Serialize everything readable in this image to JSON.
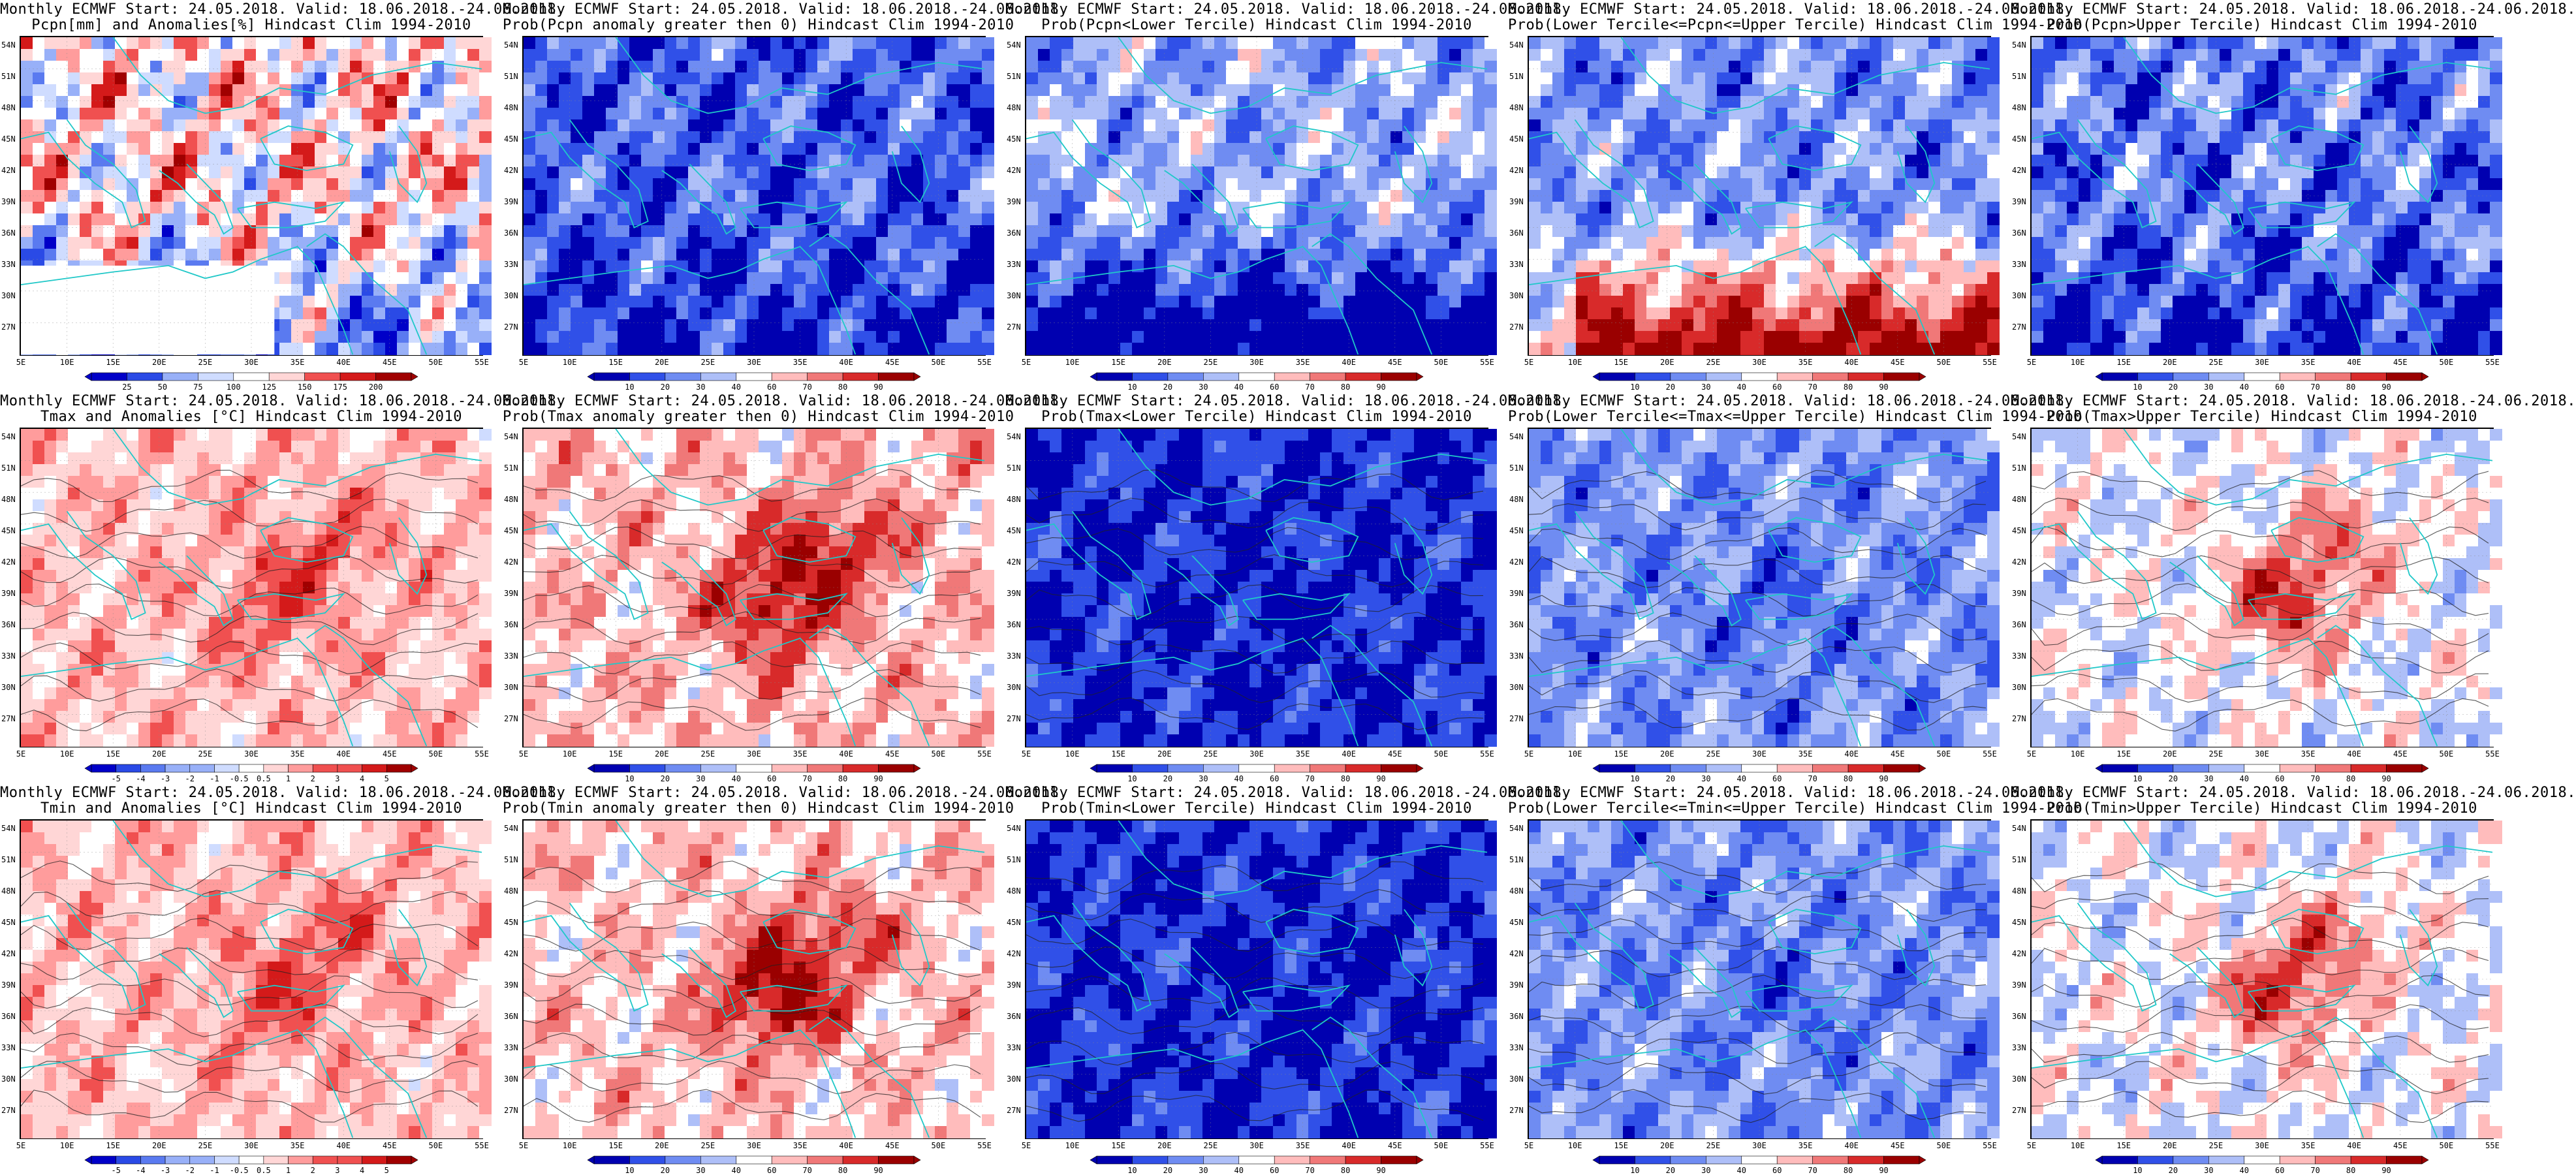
{
  "lat_labels": [
    "54N",
    "51N",
    "48N",
    "45N",
    "42N",
    "39N",
    "36N",
    "33N",
    "30N",
    "27N"
  ],
  "lon_labels": [
    "5E",
    "10E",
    "15E",
    "20E",
    "25E",
    "30E",
    "35E",
    "40E",
    "45E",
    "50E",
    "55E"
  ],
  "palettes": {
    "pcpn": [
      "#3b1f00",
      "#8a4a10",
      "#c98a4a",
      "#e8c89a",
      "#ffffff",
      "#c8d8ff",
      "#8aa8ff",
      "#4a6aff",
      "#1a2ae0",
      "#0a0a90"
    ],
    "anom": [
      "#0000c8",
      "#2a4ae6",
      "#5a7af0",
      "#98b0f8",
      "#cfdcff",
      "#ffffff",
      "#ffd6d6",
      "#ff9c9c",
      "#f05050",
      "#d41a1a",
      "#a00000"
    ],
    "prob": [
      "#0000b0",
      "#3050e8",
      "#6f8cf2",
      "#aebff8",
      "#ffffff",
      "#ffbcbc",
      "#f07878",
      "#d82a2a",
      "#9a0000"
    ]
  },
  "panels": [
    {
      "title1": "Monthly ECMWF Start: 24.05.2018. Valid: 18.06.2018.-24.06.2018.",
      "title2": "Pcpn[mm] and Anomalies[%] Hindcast Clim 1994-2010",
      "palette": "anom",
      "mode": "pcpn",
      "colorbar": [
        "25",
        "50",
        "75",
        "100",
        "125",
        "150",
        "175",
        "200"
      ],
      "contours": false
    },
    {
      "title1": "Monthly ECMWF Start: 24.05.2018. Valid: 18.06.2018.-24.06.2018.",
      "title2": "Prob(Pcpn anomaly greater then 0) Hindcast Clim 1994-2010",
      "palette": "prob",
      "mode": "pwet",
      "colorbar": [
        "10",
        "20",
        "30",
        "40",
        "60",
        "70",
        "80",
        "90"
      ],
      "contours": false
    },
    {
      "title1": "Monthly ECMWF Start: 24.05.2018. Valid: 18.06.2018.-24.06.2018.",
      "title2": "Prob(Pcpn<Lower Tercile) Hindcast Clim 1994-2010",
      "palette": "prob",
      "mode": "plow",
      "colorbar": [
        "10",
        "20",
        "30",
        "40",
        "60",
        "70",
        "80",
        "90"
      ],
      "contours": false
    },
    {
      "title1": "Monthly ECMWF Start: 24.05.2018. Valid: 18.06.2018.-24.06.2018.",
      "title2": "Prob(Lower Tercile<=Pcpn<=Upper Tercile) Hindcast Clim 1994-2010",
      "palette": "prob",
      "mode": "pmid",
      "colorbar": [
        "10",
        "20",
        "30",
        "40",
        "60",
        "70",
        "80",
        "90"
      ],
      "contours": false
    },
    {
      "title1": "Monthly ECMWF Start: 24.05.2018. Valid: 18.06.2018.-24.06.2018.",
      "title2": "Prob(Pcpn>Upper Tercile) Hindcast Clim 1994-2010",
      "palette": "prob",
      "mode": "phigh",
      "colorbar": [
        "10",
        "20",
        "30",
        "40",
        "60",
        "70",
        "80",
        "90"
      ],
      "contours": false
    },
    {
      "title1": "Monthly ECMWF Start: 24.05.2018. Valid: 18.06.2018.-24.06.2018.",
      "title2": "Tmax and Anomalies [°C] Hindcast Clim 1994-2010",
      "palette": "anom",
      "mode": "tanom",
      "colorbar": [
        "-5",
        "-4",
        "-3",
        "-2",
        "-1",
        "-0.5",
        "0.5",
        "1",
        "2",
        "3",
        "4",
        "5"
      ],
      "contours": true
    },
    {
      "title1": "Monthly ECMWF Start: 24.05.2018. Valid: 18.06.2018.-24.06.2018.",
      "title2": "Prob(Tmax anomaly greater then 0) Hindcast Clim 1994-2010",
      "palette": "prob",
      "mode": "twarm",
      "colorbar": [
        "10",
        "20",
        "30",
        "40",
        "60",
        "70",
        "80",
        "90"
      ],
      "contours": true
    },
    {
      "title1": "Monthly ECMWF Start: 24.05.2018. Valid: 18.06.2018.-24.06.2018.",
      "title2": "Prob(Tmax<Lower Tercile) Hindcast Clim 1994-2010",
      "palette": "prob",
      "mode": "tlow",
      "colorbar": [
        "10",
        "20",
        "30",
        "40",
        "60",
        "70",
        "80",
        "90"
      ],
      "contours": true
    },
    {
      "title1": "Monthly ECMWF Start: 24.05.2018. Valid: 18.06.2018.-24.06.2018.",
      "title2": "Prob(Lower Tercile<=Tmax<=Upper Tercile) Hindcast Clim 1994-2010",
      "palette": "prob",
      "mode": "tmid",
      "colorbar": [
        "10",
        "20",
        "30",
        "40",
        "60",
        "70",
        "80",
        "90"
      ],
      "contours": true
    },
    {
      "title1": "Monthly ECMWF Start: 24.05.2018. Valid: 18.06.2018.-24.06.2018.",
      "title2": "Prob(Tmax>Upper Tercile) Hindcast Clim 1994-2010",
      "palette": "prob",
      "mode": "thigh",
      "colorbar": [
        "10",
        "20",
        "30",
        "40",
        "60",
        "70",
        "80",
        "90"
      ],
      "contours": true
    },
    {
      "title1": "Monthly ECMWF Start: 24.05.2018. Valid: 18.06.2018.-24.06.2018.",
      "title2": "Tmin and Anomalies [°C] Hindcast Clim 1994-2010",
      "palette": "anom",
      "mode": "tanom",
      "colorbar": [
        "-5",
        "-4",
        "-3",
        "-2",
        "-1",
        "-0.5",
        "0.5",
        "1",
        "2",
        "3",
        "4",
        "5"
      ],
      "contours": true
    },
    {
      "title1": "Monthly ECMWF Start: 24.05.2018. Valid: 18.06.2018.-24.06.2018.",
      "title2": "Prob(Tmin anomaly greater then 0) Hindcast Clim 1994-2010",
      "palette": "prob",
      "mode": "twarm2",
      "colorbar": [
        "10",
        "20",
        "30",
        "40",
        "60",
        "70",
        "80",
        "90"
      ],
      "contours": true
    },
    {
      "title1": "Monthly ECMWF Start: 24.05.2018. Valid: 18.06.2018.-24.06.2018.",
      "title2": "Prob(Tmin<Lower Tercile) Hindcast Clim 1994-2010",
      "palette": "prob",
      "mode": "tlow",
      "colorbar": [
        "10",
        "20",
        "30",
        "40",
        "60",
        "70",
        "80",
        "90"
      ],
      "contours": true
    },
    {
      "title1": "Monthly ECMWF Start: 24.05.2018. Valid: 18.06.2018.-24.06.2018.",
      "title2": "Prob(Lower Tercile<=Tmin<=Upper Tercile) Hindcast Clim 1994-2010",
      "palette": "prob",
      "mode": "tmid",
      "colorbar": [
        "10",
        "20",
        "30",
        "40",
        "60",
        "70",
        "80",
        "90"
      ],
      "contours": true
    },
    {
      "title1": "Monthly ECMWF Start: 24.05.2018. Valid: 18.06.2018.-24.06.2018.",
      "title2": "Prob(Tmin>Upper Tercile) Hindcast Clim 1994-2010",
      "palette": "prob",
      "mode": "thigh",
      "colorbar": [
        "10",
        "20",
        "30",
        "40",
        "60",
        "70",
        "80",
        "90"
      ],
      "contours": true
    }
  ]
}
